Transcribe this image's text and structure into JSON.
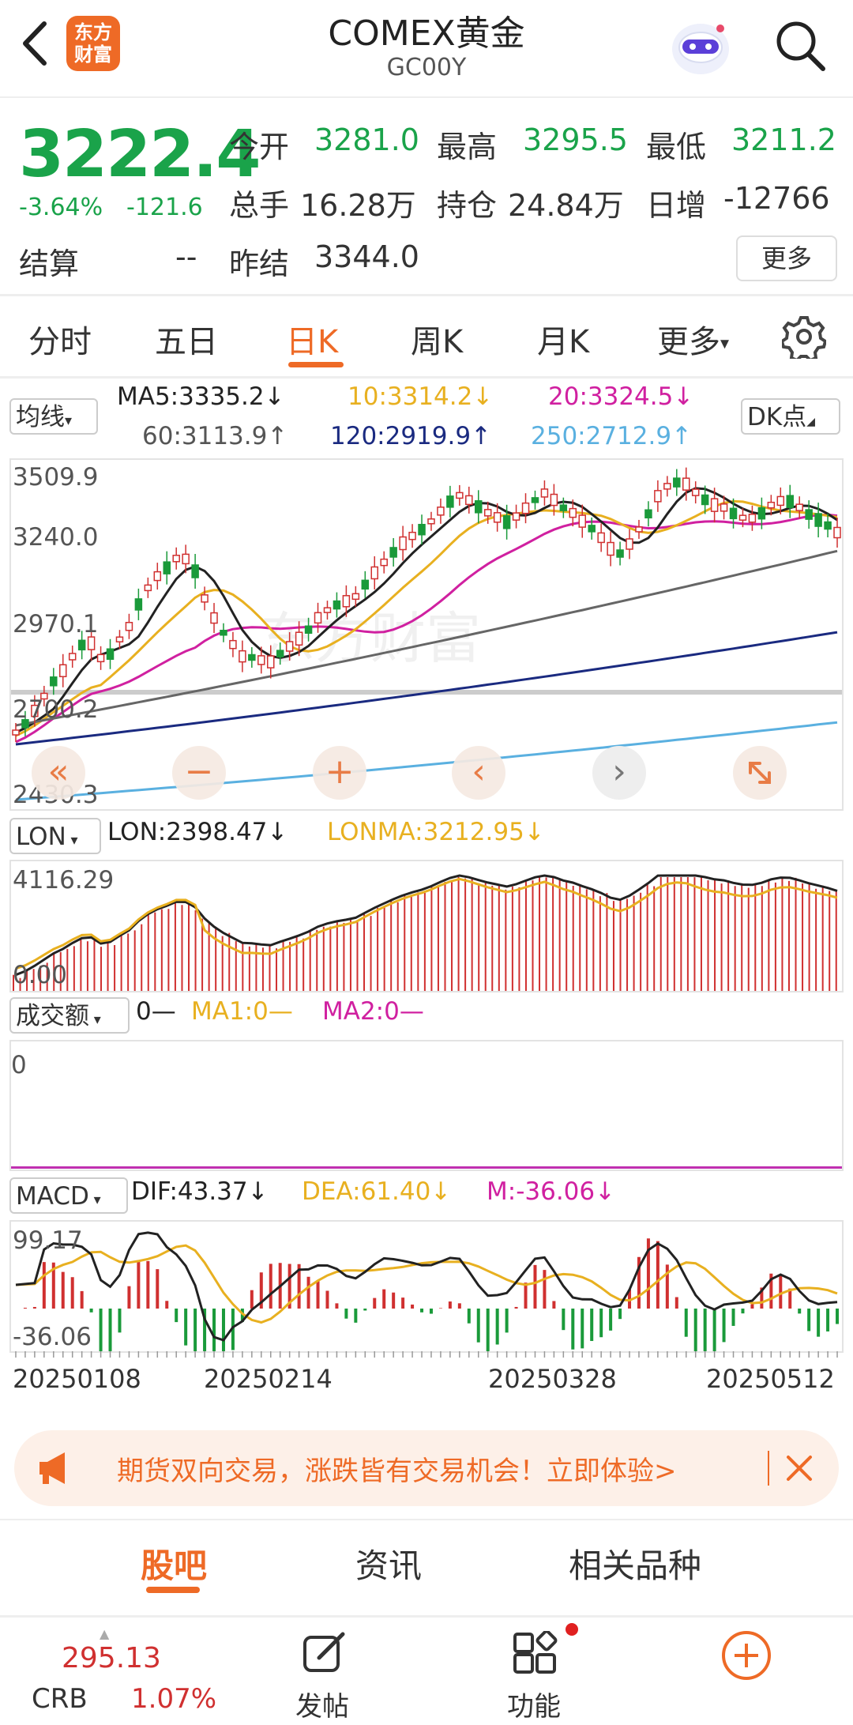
{
  "header": {
    "title": "COMEX黄金",
    "code": "GC00Y",
    "logo_text_line1": "东方",
    "logo_text_line2": "财富"
  },
  "quote": {
    "price": "3222.4",
    "change_pct": "-3.64%",
    "change_abs": "-121.6",
    "open_label": "今开",
    "open": "3281.0",
    "high_label": "最高",
    "high": "3295.5",
    "low_label": "最低",
    "low": "3211.2",
    "volume_label": "总手",
    "volume": "16.28万",
    "oi_label": "持仓",
    "oi": "24.84万",
    "daily_inc_label": "日增",
    "daily_inc": "-12766",
    "settle_label": "结算",
    "settle": "--",
    "prev_settle_label": "昨结",
    "prev_settle": "3344.0",
    "more_label": "更多"
  },
  "tabs": [
    {
      "label": "分时"
    },
    {
      "label": "五日"
    },
    {
      "label": "日K"
    },
    {
      "label": "周K"
    },
    {
      "label": "月K"
    },
    {
      "label": "更多"
    }
  ],
  "main_chart": {
    "indicator": "均线",
    "dk_label": "DK点",
    "ma5": "MA5:3335.2↓",
    "ma10": "10:3314.2↓",
    "ma20": "20:3324.5↓",
    "ma60": "60:3113.9↑",
    "ma120": "120:2919.9↑",
    "ma250": "250:2712.9↑",
    "y_labels": [
      "3509.9",
      "3240.0",
      "2970.1",
      "2700.2",
      "2430.3"
    ],
    "watermark": "东方财富",
    "colors": {
      "ma5": "#222222",
      "ma10": "#e8b020",
      "ma20": "#d020a0",
      "ma60": "#666666",
      "ma120": "#1a2a80",
      "ma250": "#5ab0e0",
      "up": "#d03030",
      "down": "#1a9a3a"
    }
  },
  "lon_chart": {
    "indicator": "LON",
    "lon": "LON:2398.47↓",
    "lonma": "LONMA:3212.95↓",
    "y_top": "4116.29",
    "y_bottom": "0.00"
  },
  "amount_chart": {
    "indicator": "成交额",
    "val": "0—",
    "ma1": "MA1:0—",
    "ma2": "MA2:0—",
    "y_top": "0"
  },
  "macd_chart": {
    "indicator": "MACD",
    "dif": "DIF:43.37↓",
    "dea": "DEA:61.40↓",
    "m": "M:-36.06↓",
    "y_top": "99.17",
    "y_bottom": "-36.06"
  },
  "dates": [
    "20250108",
    "20250214",
    "20250328",
    "20250512"
  ],
  "banner": {
    "text": "期货双向交易，涨跌皆有交易机会！立即体验>"
  },
  "bottom_tabs": [
    {
      "label": "股吧"
    },
    {
      "label": "资讯"
    },
    {
      "label": "相关品种"
    }
  ],
  "bottom_nav": {
    "crb_value": "295.13",
    "crb_label": "CRB",
    "crb_pct": "1.07%",
    "post_label": "发帖",
    "func_label": "功能"
  }
}
